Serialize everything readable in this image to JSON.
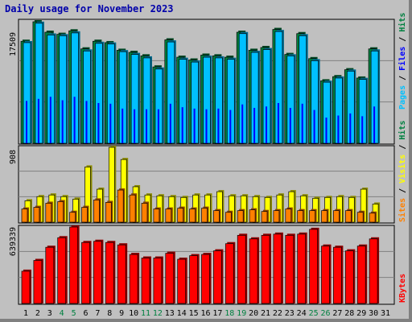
{
  "title": "Daily usage for November 2023",
  "colors": {
    "hits": "#008040",
    "files": "#0000ff",
    "pages": "#00c0ff",
    "visits": "#ffff00",
    "sites": "#ff8000",
    "kbytes": "#ff0000",
    "day_normal": "#000000",
    "day_weekend": "#008040"
  },
  "chart_data": [
    {
      "type": "bar",
      "title": "Daily usage for November 2023",
      "ylabel_max": "17509",
      "ylim": [
        0,
        17509
      ],
      "series_labels": [
        "Pages",
        "Files",
        "Hits"
      ],
      "series": [
        {
          "name": "Hits",
          "values": [
            14700,
            17509,
            16000,
            15700,
            16200,
            13600,
            14700,
            14500,
            13400,
            13100,
            12600,
            11000,
            14900,
            12400,
            12000,
            12700,
            12600,
            12400,
            16000,
            13400,
            13800,
            16400,
            12800,
            15800,
            12200,
            9000,
            9600,
            10600,
            9400,
            13600
          ]
        },
        {
          "name": "Files",
          "values": [
            6100,
            6400,
            6700,
            6200,
            6700,
            6100,
            5800,
            5700,
            5000,
            4900,
            4900,
            4900,
            5700,
            5200,
            5000,
            4900,
            5000,
            4800,
            5600,
            5100,
            5300,
            5800,
            5100,
            5700,
            4800,
            3700,
            4000,
            4300,
            3900,
            5300
          ]
        },
        {
          "name": "Pages",
          "values": [
            14500,
            17300,
            15600,
            15500,
            15900,
            13300,
            14400,
            14300,
            13200,
            12800,
            12300,
            10700,
            14600,
            12100,
            11700,
            12400,
            12300,
            12100,
            15800,
            13100,
            13500,
            16100,
            12600,
            15500,
            11900,
            8800,
            9400,
            10400,
            9200,
            13300
          ]
        }
      ]
    },
    {
      "type": "bar",
      "ylabel_max": "908",
      "ylim": [
        0,
        908
      ],
      "series_labels": [
        "Sites",
        "Visits",
        "Hits"
      ],
      "series": [
        {
          "name": "Visits",
          "values": [
            260,
            310,
            330,
            310,
            280,
            670,
            400,
            908,
            760,
            430,
            330,
            320,
            310,
            300,
            330,
            330,
            370,
            320,
            320,
            310,
            300,
            330,
            370,
            320,
            290,
            300,
            310,
            300,
            400,
            220
          ]
        },
        {
          "name": "Sites",
          "values": [
            160,
            180,
            230,
            250,
            120,
            180,
            270,
            240,
            390,
            330,
            230,
            160,
            160,
            170,
            160,
            170,
            140,
            120,
            140,
            150,
            130,
            140,
            160,
            140,
            140,
            140,
            140,
            140,
            120,
            110
          ]
        }
      ]
    },
    {
      "type": "bar",
      "ylabel_max": "639339",
      "ylim": [
        0,
        639339
      ],
      "series_labels": [
        "KBytes"
      ],
      "series": [
        {
          "name": "KBytes",
          "values": [
            270000,
            360000,
            470000,
            550000,
            639339,
            510000,
            520000,
            510000,
            490000,
            410000,
            380000,
            380000,
            420000,
            370000,
            400000,
            410000,
            440000,
            500000,
            570000,
            540000,
            570000,
            580000,
            570000,
            580000,
            620000,
            480000,
            470000,
            440000,
            480000,
            540000
          ]
        }
      ]
    }
  ],
  "days": [
    "1",
    "2",
    "3",
    "4",
    "5",
    "6",
    "7",
    "8",
    "9",
    "10",
    "11",
    "12",
    "13",
    "14",
    "15",
    "16",
    "17",
    "18",
    "19",
    "20",
    "21",
    "22",
    "23",
    "24",
    "25",
    "26",
    "27",
    "28",
    "29",
    "30",
    "31"
  ],
  "weekend_days": [
    "4",
    "5",
    "11",
    "12",
    "18",
    "19",
    "25",
    "26"
  ]
}
